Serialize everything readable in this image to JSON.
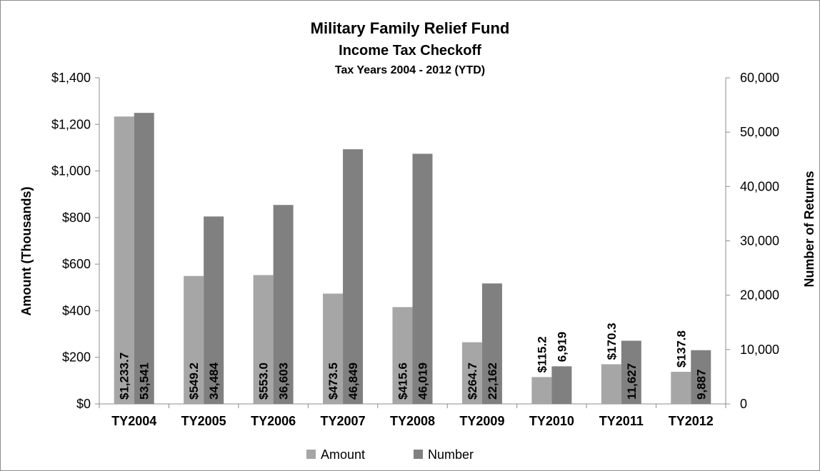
{
  "chart_data": {
    "type": "bar",
    "title": "Military Family Relief Fund",
    "subtitle": "Income Tax Checkoff",
    "subtitle2": "Tax Years 2004 - 2012 (YTD)",
    "categories": [
      "TY2004",
      "TY2005",
      "TY2006",
      "TY2007",
      "TY2008",
      "TY2009",
      "TY2010",
      "TY2011",
      "TY2012"
    ],
    "series": [
      {
        "name": "Amount",
        "axis": "left",
        "color": "#a6a6a6",
        "values": [
          1233.7,
          549.2,
          553.0,
          473.5,
          415.6,
          264.7,
          115.2,
          170.3,
          137.8
        ],
        "labels": [
          "$1,233.7",
          "$549.2",
          "$553.0",
          "$473.5",
          "$415.6",
          "$264.7",
          "$115.2",
          "$170.3",
          "$137.8"
        ]
      },
      {
        "name": "Number",
        "axis": "right",
        "color": "#808080",
        "values": [
          53541,
          34484,
          36603,
          46849,
          46019,
          22162,
          6919,
          11627,
          9887
        ],
        "labels": [
          "53,541",
          "34,484",
          "36,603",
          "46,849",
          "46,019",
          "22,162",
          "6,919",
          "11,627",
          "9,887"
        ]
      }
    ],
    "ylabel_left": "Amount (Thousands)",
    "ylabel_right": "Number of Returns",
    "ylim_left": [
      0,
      1400
    ],
    "ylim_right": [
      0,
      60000
    ],
    "yticks_left": [
      "$0",
      "$200",
      "$400",
      "$600",
      "$800",
      "$1,000",
      "$1,200",
      "$1,400"
    ],
    "yticks_right": [
      "0",
      "10,000",
      "20,000",
      "30,000",
      "40,000",
      "50,000",
      "60,000"
    ],
    "gridlines": false,
    "legend_position": "bottom"
  }
}
